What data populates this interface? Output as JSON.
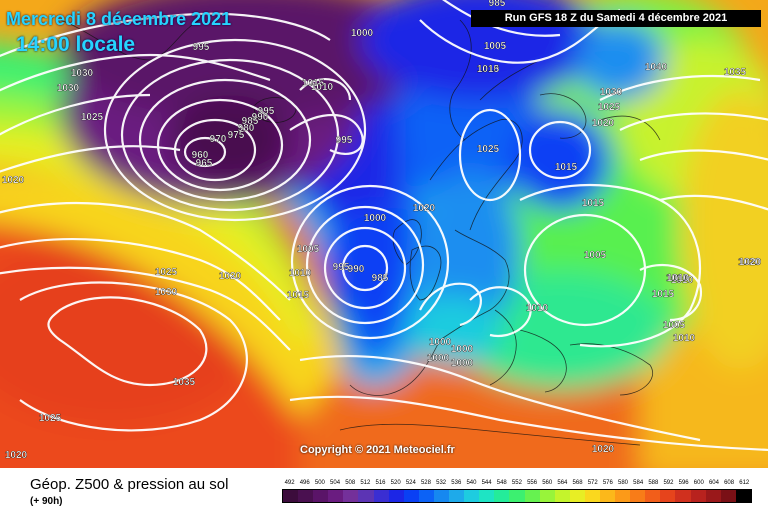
{
  "date_label": "Mercredi 8 décembre 2021",
  "time_label": "14:00 locale",
  "run_label": "Run GFS 18 Z du Samedi 4 décembre 2021",
  "copyright": "Copyright © 2021 Meteociel.fr",
  "footer": {
    "title": "Géop. Z500 & pression au sol",
    "subtitle": "(+ 90h)"
  },
  "legend": {
    "values": [
      "492",
      "496",
      "500",
      "504",
      "508",
      "512",
      "516",
      "520",
      "524",
      "528",
      "532",
      "536",
      "540",
      "544",
      "548",
      "552",
      "556",
      "560",
      "564",
      "568",
      "572",
      "576",
      "580",
      "584",
      "588",
      "592",
      "596",
      "600",
      "604",
      "608",
      "612"
    ],
    "colors": [
      "#3c0c3c",
      "#4a1050",
      "#5a1468",
      "#6a1c80",
      "#74309a",
      "#5c34b4",
      "#3a2ed2",
      "#1c26e6",
      "#0a40f4",
      "#0c62f6",
      "#1688f0",
      "#1eaaea",
      "#1ecce0",
      "#1ee4c4",
      "#24ec9a",
      "#3cf070",
      "#66f250",
      "#98f43a",
      "#c4f42c",
      "#e8ee24",
      "#fad81e",
      "#fcb81a",
      "#fc9a18",
      "#f87c18",
      "#f25e1a",
      "#e6441c",
      "#d0301e",
      "#b8221e",
      "#9a181a",
      "#7a1016",
      "#000000"
    ]
  },
  "isobar_labels": [
    "985",
    "995",
    "1030",
    "1030",
    "1025",
    "1020",
    "1025",
    "1020",
    "1030",
    "1015",
    "1010",
    "1005",
    "960",
    "965",
    "970",
    "975",
    "980",
    "985",
    "990",
    "995",
    "1015",
    "1010",
    "995",
    "1000",
    "995",
    "990",
    "985",
    "1005",
    "1010",
    "1015",
    "1000",
    "1005",
    "1010",
    "1020",
    "1025",
    "1015",
    "1000",
    "1000",
    "1000",
    "1000",
    "1010",
    "1005",
    "1010",
    "1040",
    "1035",
    "1030",
    "1025",
    "1020",
    "1015",
    "1015",
    "1010",
    "1010",
    "1020",
    "1035",
    "1025",
    "1020",
    "1020",
    "1020"
  ]
}
